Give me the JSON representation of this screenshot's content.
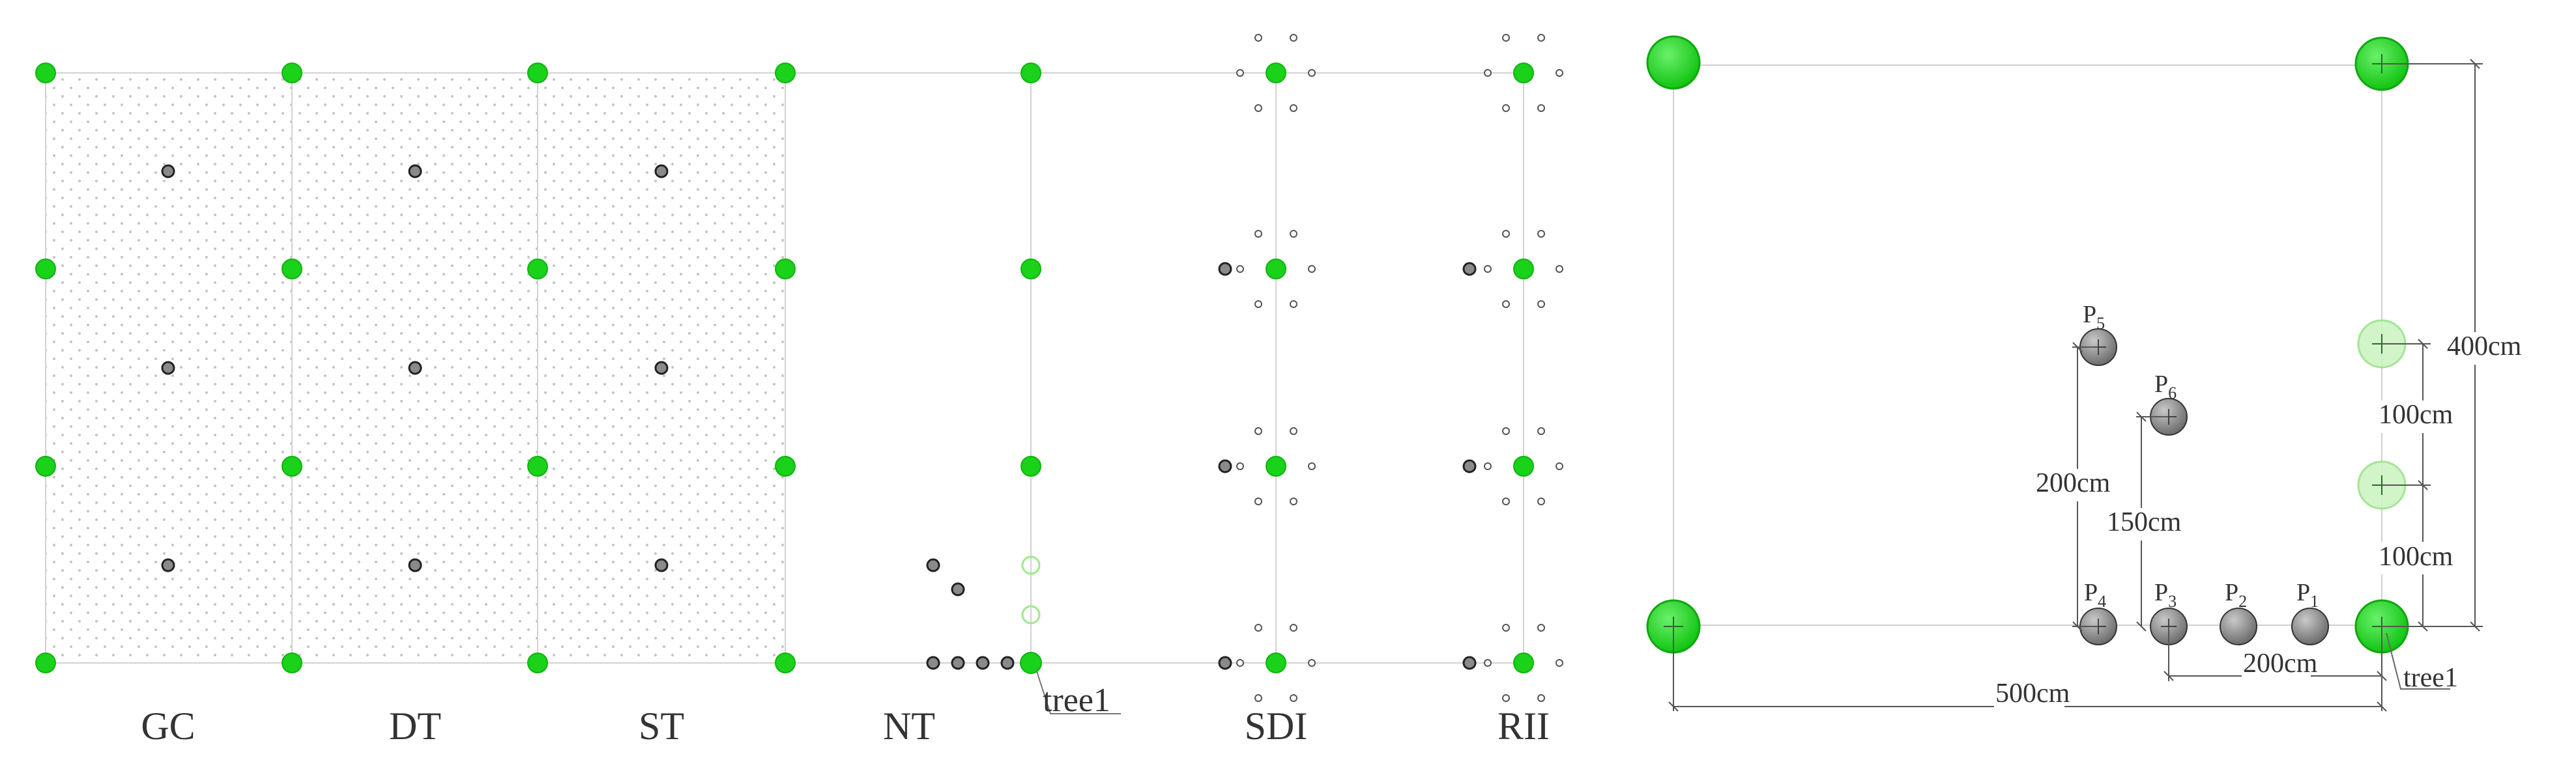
{
  "colors": {
    "tree": "#19d219",
    "tree_edge": "#0fa80f",
    "tree_faded": "#a8ea9a",
    "point_fill": "#8a8a8a",
    "point_edge": "#222222",
    "line": "#c8c8c8",
    "dim_line": "#555555",
    "dot_pattern": "#bdbdbd"
  },
  "left_panel": {
    "treatments": [
      {
        "code": "GC",
        "label": "GC"
      },
      {
        "code": "DT",
        "label": "DT"
      },
      {
        "code": "ST",
        "label": "ST"
      },
      {
        "code": "NT",
        "label": "NT"
      },
      {
        "code": "SDI",
        "label": "SDI"
      },
      {
        "code": "RII",
        "label": "RII"
      }
    ],
    "callout": "tree1"
  },
  "right_panel": {
    "points": [
      {
        "id": "P1",
        "letter": "P",
        "sub": "1"
      },
      {
        "id": "P2",
        "letter": "P",
        "sub": "2"
      },
      {
        "id": "P3",
        "letter": "P",
        "sub": "3"
      },
      {
        "id": "P4",
        "letter": "P",
        "sub": "4"
      },
      {
        "id": "P5",
        "letter": "P",
        "sub": "5"
      },
      {
        "id": "P6",
        "letter": "P",
        "sub": "6"
      }
    ],
    "dimensions": {
      "vertical_400": "400cm",
      "upper_100": "100cm",
      "lower_100": "100cm",
      "p5_200": "200cm",
      "p6_150": "150cm",
      "horizontal_200": "200cm",
      "horizontal_500": "500cm"
    },
    "callout": "tree1"
  }
}
